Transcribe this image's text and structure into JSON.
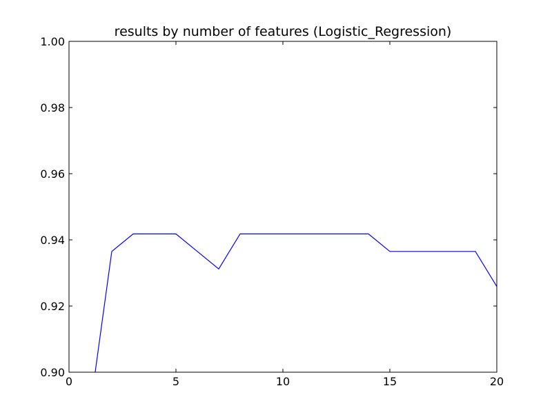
{
  "chart_data": {
    "type": "line",
    "title": "results by number of features (Logistic_Regression)",
    "xlabel": "",
    "ylabel": "",
    "xlim": [
      0,
      20
    ],
    "ylim": [
      0.9,
      1.0
    ],
    "grid": false,
    "x_ticks": [
      0,
      5,
      10,
      15,
      20
    ],
    "y_ticks": [
      0.9,
      0.92,
      0.94,
      0.96,
      0.98,
      1.0
    ],
    "x_tick_labels": [
      "0",
      "5",
      "10",
      "15",
      "20"
    ],
    "y_tick_labels": [
      "0.90",
      "0.92",
      "0.94",
      "0.96",
      "0.98",
      "1.00"
    ],
    "series": [
      {
        "color": "#0000ff",
        "x": [
          1,
          2,
          3,
          4,
          5,
          6,
          7,
          8,
          9,
          10,
          11,
          12,
          13,
          14,
          15,
          16,
          17,
          18,
          19,
          20
        ],
        "y": [
          0.8895,
          0.9365,
          0.9418,
          0.9418,
          0.9418,
          0.9365,
          0.9312,
          0.9418,
          0.9418,
          0.9418,
          0.9418,
          0.9418,
          0.9418,
          0.9418,
          0.9365,
          0.9365,
          0.9365,
          0.9365,
          0.9365,
          0.9259
        ]
      }
    ]
  }
}
